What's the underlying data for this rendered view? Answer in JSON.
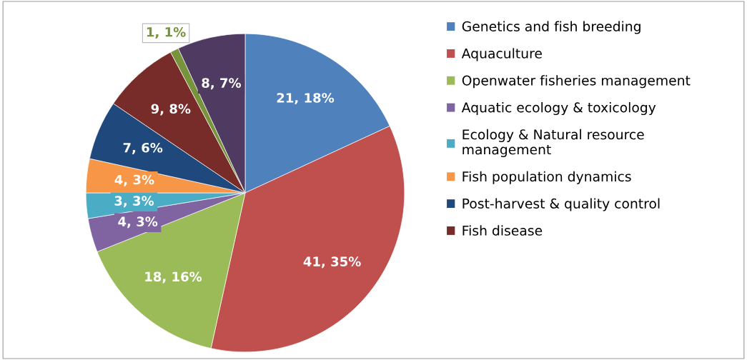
{
  "chart_data": {
    "type": "pie",
    "categories": [
      "Genetics and fish breeding",
      "Aquaculture",
      "Openwater fisheries management",
      "Aquatic ecology & toxicology",
      "Ecology & Natural resource\nmanagement",
      "Fish population dynamics",
      "Post-harvest & quality control",
      "Fish disease",
      null,
      null
    ],
    "values": [
      21,
      41,
      18,
      4,
      3,
      4,
      7,
      9,
      1,
      8
    ],
    "value_labels": [
      "21, 18%",
      "41, 35%",
      "18, 16%",
      "4, 3%",
      "3, 3%",
      "4, 3%",
      "7, 6%",
      "9, 8%",
      "1, 1%",
      "8, 7%"
    ],
    "colors": [
      "#4f81bd",
      "#c0504d",
      "#9bbb59",
      "#8064a2",
      "#4bacc6",
      "#f79646",
      "#1f497d",
      "#772c2a",
      "#77933c",
      "#4f3b62"
    ],
    "legend": "right"
  }
}
